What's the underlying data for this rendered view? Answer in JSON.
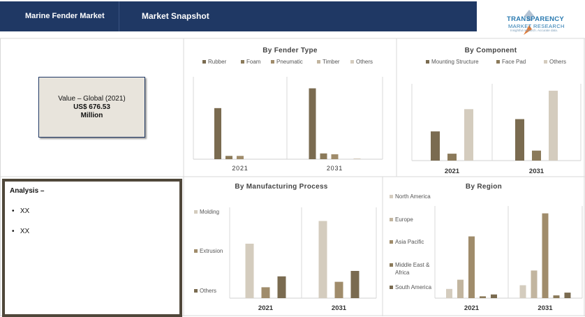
{
  "header": {
    "market_title": "Marine Fender Market",
    "snapshot_title": "Market Snapshot"
  },
  "logo": {
    "line1": "TRANSPARENCY",
    "line2": "MARKET RESEARCH",
    "line3": "Insightful research. Accurate data."
  },
  "value_box": {
    "line1": "Value – Global (2021)",
    "line2": "US$ 676.53",
    "line3": "Million"
  },
  "analysis": {
    "title": "Analysis –",
    "bullets": [
      "XX",
      "XX"
    ]
  },
  "colors": {
    "header": "#1f3864",
    "rubber": "#7a6b50",
    "foam": "#8b7a5a",
    "pneumatic": "#a08c6b",
    "timber": "#c2b59f",
    "others": "#d4ccbe"
  },
  "chart_data": [
    {
      "id": "fender_type",
      "type": "bar",
      "title": "By Fender Type",
      "categories": [
        "2021",
        "2031"
      ],
      "series": [
        {
          "name": "Rubber",
          "color": "#7a6b50",
          "values": [
            0.62,
            0.86
          ]
        },
        {
          "name": "Foam",
          "color": "#8b7a5a",
          "values": [
            0.04,
            0.07
          ]
        },
        {
          "name": "Pneumatic",
          "color": "#a08c6b",
          "values": [
            0.04,
            0.06
          ]
        },
        {
          "name": "Timber",
          "color": "#c2b59f",
          "values": [
            0.0,
            0.0
          ]
        },
        {
          "name": "Others",
          "color": "#d4ccbe",
          "values": [
            0.0,
            0.01
          ]
        }
      ]
    },
    {
      "id": "component",
      "type": "bar",
      "title": "By Component",
      "categories": [
        "2021",
        "2031"
      ],
      "series": [
        {
          "name": "Mounting Structure",
          "color": "#7a6b50",
          "values": [
            0.38,
            0.54
          ]
        },
        {
          "name": "Face Pad",
          "color": "#8b7a5a",
          "values": [
            0.09,
            0.13
          ]
        },
        {
          "name": "Others",
          "color": "#d4ccbe",
          "values": [
            0.67,
            0.91
          ]
        }
      ]
    },
    {
      "id": "manufacturing",
      "type": "bar",
      "title": "By Manufacturing Process",
      "categories": [
        "2021",
        "2031"
      ],
      "series": [
        {
          "name": "Molding",
          "color": "#d4ccbe",
          "values": [
            0.6,
            0.85
          ]
        },
        {
          "name": "Extrusion",
          "color": "#a08c6b",
          "values": [
            0.12,
            0.18
          ]
        },
        {
          "name": "Others",
          "color": "#7a6b50",
          "values": [
            0.24,
            0.3
          ]
        }
      ]
    },
    {
      "id": "region",
      "type": "bar",
      "title": "By Region",
      "categories": [
        "2021",
        "2031"
      ],
      "series": [
        {
          "name": "North America",
          "color": "#d4ccbe",
          "values": [
            0.1,
            0.14
          ]
        },
        {
          "name": "Europe",
          "color": "#c2b59f",
          "values": [
            0.2,
            0.3
          ]
        },
        {
          "name": "Asia Pacific",
          "color": "#a08c6b",
          "values": [
            0.67,
            0.92
          ]
        },
        {
          "name": "Middle East & Africa",
          "color": "#8b7a5a",
          "values": [
            0.02,
            0.03
          ]
        },
        {
          "name": "South America",
          "color": "#7a6b50",
          "values": [
            0.04,
            0.06
          ]
        }
      ]
    }
  ]
}
